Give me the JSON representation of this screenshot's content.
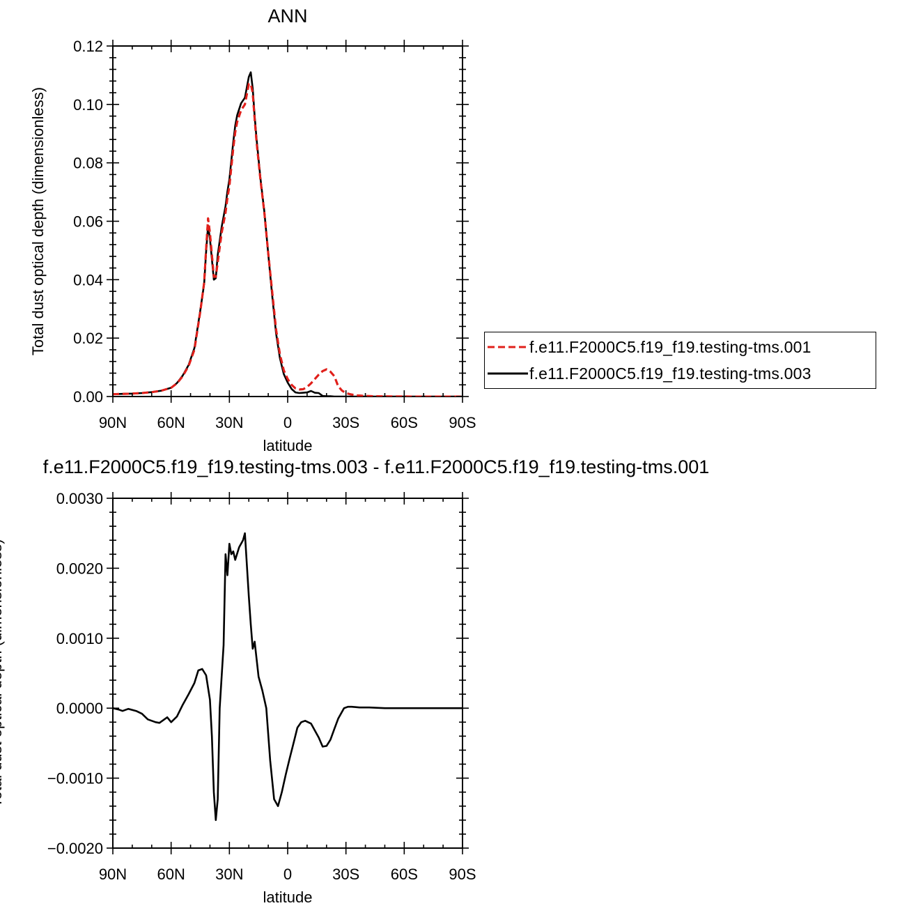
{
  "chart_data": [
    {
      "type": "line",
      "title": "ANN",
      "xlabel": "latitude",
      "ylabel": "Total dust optical depth (dimensionless)",
      "xlim": [
        90,
        -90
      ],
      "ylim": [
        0.0,
        0.12
      ],
      "x_tick_values": [
        90,
        60,
        30,
        0,
        -30,
        -60,
        -90
      ],
      "x_tick_labels": [
        "90N",
        "60N",
        "30N",
        "0",
        "30S",
        "60S",
        "90S"
      ],
      "y_tick_values": [
        0.0,
        0.02,
        0.04,
        0.06,
        0.08,
        0.1,
        0.12
      ],
      "y_tick_labels": [
        "0.00",
        "0.02",
        "0.04",
        "0.06",
        "0.08",
        "0.10",
        "0.12"
      ],
      "legend_placement": "right",
      "series": [
        {
          "name": "f.e11.F2000C5.f19_f19.testing-tms.001",
          "color": "#e0201b",
          "dash": "dashed",
          "x": [
            90,
            85,
            80,
            75,
            70,
            65,
            60,
            57,
            54,
            51,
            48,
            45,
            43,
            42,
            41,
            40,
            38,
            37,
            36,
            34,
            32,
            31,
            30,
            28,
            27,
            26,
            24,
            22,
            20,
            19,
            18,
            17,
            16,
            14,
            12,
            10,
            8,
            6,
            4,
            2,
            0,
            -2,
            -4,
            -6,
            -8,
            -10,
            -12,
            -14,
            -16,
            -18,
            -20,
            -22,
            -24,
            -25,
            -26,
            -28,
            -30,
            -32,
            -35,
            -40,
            -45,
            -50,
            -60,
            -70,
            -80,
            -90
          ],
          "y": [
            0.0008,
            0.0009,
            0.001,
            0.0012,
            0.0015,
            0.002,
            0.003,
            0.0045,
            0.007,
            0.0105,
            0.016,
            0.029,
            0.039,
            0.0505,
            0.061,
            0.056,
            0.041,
            0.041,
            0.046,
            0.056,
            0.063,
            0.068,
            0.072,
            0.085,
            0.0905,
            0.094,
            0.098,
            0.1,
            0.107,
            0.107,
            0.104,
            0.095,
            0.087,
            0.074,
            0.063,
            0.049,
            0.036,
            0.023,
            0.0145,
            0.009,
            0.006,
            0.004,
            0.0028,
            0.0024,
            0.0025,
            0.0033,
            0.0045,
            0.006,
            0.0075,
            0.0087,
            0.0093,
            0.0085,
            0.007,
            0.0053,
            0.0035,
            0.002,
            0.0012,
            0.0008,
            0.0004,
            0.0002,
            0.0001,
            5e-05,
            2e-05,
            1e-05,
            0.0,
            0.0
          ]
        },
        {
          "name": "f.e11.F2000C5.f19_f19.testing-tms.003",
          "color": "#000000",
          "dash": "solid",
          "x": [
            90,
            85,
            80,
            75,
            70,
            65,
            60,
            57,
            54,
            51,
            48,
            45,
            43,
            42,
            41,
            40,
            38,
            37,
            36,
            34,
            32,
            31,
            30,
            28,
            27,
            26,
            24,
            22,
            20,
            19,
            18,
            17,
            16,
            14,
            12,
            10,
            8,
            6,
            4,
            2,
            0,
            -2,
            -4,
            -6,
            -8,
            -10,
            -12,
            -14,
            -16,
            -18,
            -20,
            -22,
            -24,
            -25,
            -26,
            -28,
            -30,
            -32,
            -35,
            -40,
            -45,
            -50,
            -60,
            -70,
            -80,
            -90
          ],
          "y": [
            0.0008,
            0.0009,
            0.001,
            0.0012,
            0.0015,
            0.002,
            0.003,
            0.0046,
            0.0072,
            0.0108,
            0.0166,
            0.0294,
            0.0386,
            0.0495,
            0.0585,
            0.054,
            0.04,
            0.0405,
            0.0485,
            0.058,
            0.0652,
            0.0702,
            0.0743,
            0.0872,
            0.0927,
            0.0963,
            0.1004,
            0.1023,
            0.1094,
            0.111,
            0.1055,
            0.096,
            0.088,
            0.0745,
            0.0633,
            0.0488,
            0.0347,
            0.0217,
            0.0132,
            0.0077,
            0.0048,
            0.0026,
            0.0014,
            0.0012,
            0.0013,
            0.0014,
            0.0019,
            0.0013,
            0.0012,
            0.0002,
            0.0001,
            0.0001,
            0.0,
            0.0,
            0.0,
            0.0,
            0.0,
            0.0,
            0.0,
            0.0,
            0.0,
            0.0,
            0.0,
            0.0,
            0.0,
            0.0
          ]
        }
      ]
    },
    {
      "type": "line",
      "title": "f.e11.F2000C5.f19_f19.testing-tms.003 - f.e11.F2000C5.f19_f19.testing-tms.001",
      "xlabel": "latitude",
      "ylabel": "Total dust optical depth (dimensionless)",
      "xlim": [
        90,
        -90
      ],
      "ylim": [
        -0.002,
        0.003
      ],
      "x_tick_values": [
        90,
        60,
        30,
        0,
        -30,
        -60,
        -90
      ],
      "x_tick_labels": [
        "90N",
        "60N",
        "30N",
        "0",
        "30S",
        "60S",
        "90S"
      ],
      "y_tick_values": [
        -0.002,
        -0.001,
        0.0,
        0.001,
        0.002,
        0.003
      ],
      "y_tick_labels": [
        "−0.0020",
        "−0.0010",
        "0.0000",
        "0.0010",
        "0.0020",
        "0.0030"
      ],
      "series": [
        {
          "color": "#000000",
          "dash": "solid",
          "x": [
            90,
            87,
            85,
            82,
            78,
            75,
            72,
            68,
            66,
            64,
            62,
            60,
            57,
            54,
            51,
            48,
            46,
            44,
            42,
            40,
            39,
            38,
            37,
            36,
            35,
            33,
            32,
            31,
            30,
            29,
            28,
            27,
            25,
            23,
            22,
            20,
            19,
            18,
            17,
            16,
            15,
            13,
            11,
            9,
            7,
            5,
            3,
            1,
            -1,
            -3,
            -5,
            -7,
            -9,
            -12,
            -14,
            -16,
            -18,
            -20,
            -22,
            -24,
            -26,
            -29,
            -31,
            -33,
            -37,
            -42,
            -50,
            -60,
            -70,
            -80,
            -90
          ],
          "y": [
            0.0,
            -2e-05,
            -4e-05,
            -1e-05,
            -4e-05,
            -8e-05,
            -0.00016,
            -0.0002,
            -0.00021,
            -0.00017,
            -0.00013,
            -0.0002,
            -0.00012,
            5e-05,
            0.0002,
            0.00036,
            0.00054,
            0.00056,
            0.00047,
            0.00012,
            -0.0004,
            -0.0012,
            -0.0016,
            -0.0013,
            0.0,
            0.0009,
            0.0022,
            0.0019,
            0.00235,
            0.0022,
            0.00224,
            0.00212,
            0.0023,
            0.0024,
            0.0025,
            0.0016,
            0.0012,
            0.00085,
            0.00095,
            0.0007,
            0.00045,
            0.00025,
            0.0,
            -0.00075,
            -0.0013,
            -0.0014,
            -0.0012,
            -0.00095,
            -0.00072,
            -0.0005,
            -0.00028,
            -0.0002,
            -0.00018,
            -0.00022,
            -0.00032,
            -0.00042,
            -0.00055,
            -0.00054,
            -0.00045,
            -0.0003,
            -0.00015,
            0.0,
            2e-05,
            2e-05,
            1e-05,
            1e-05,
            0.0,
            0.0,
            0.0,
            0.0,
            0.0
          ]
        }
      ]
    }
  ]
}
